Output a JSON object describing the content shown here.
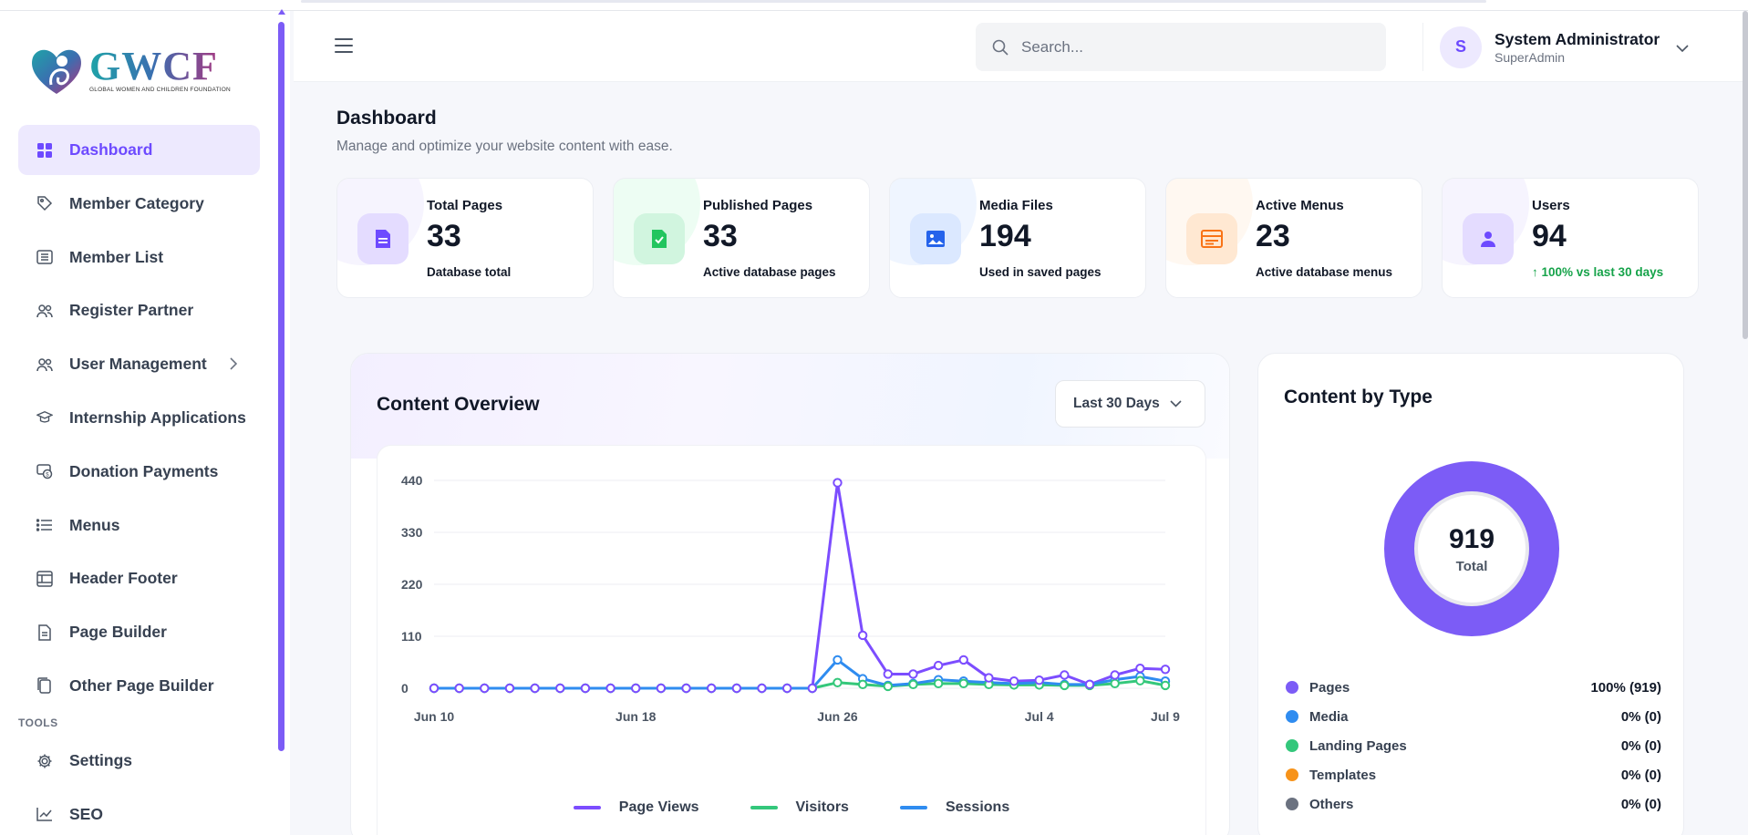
{
  "brand": {
    "name": "GWCF",
    "tagline": "GLOBAL WOMEN AND CHILDREN FOUNDATION"
  },
  "sidebar": {
    "items": [
      {
        "label": "Dashboard",
        "icon": "grid-icon",
        "active": true
      },
      {
        "label": "Member Category",
        "icon": "tag-icon"
      },
      {
        "label": "Member List",
        "icon": "list-card-icon"
      },
      {
        "label": "Register Partner",
        "icon": "users-icon"
      },
      {
        "label": "User Management",
        "icon": "users-icon",
        "has_children": true
      },
      {
        "label": "Internship Applications",
        "icon": "graduation-cap-icon"
      },
      {
        "label": "Donation Payments",
        "icon": "payment-icon"
      },
      {
        "label": "Menus",
        "icon": "menu-list-icon"
      },
      {
        "label": "Header Footer",
        "icon": "layout-icon"
      },
      {
        "label": "Page Builder",
        "icon": "file-icon"
      },
      {
        "label": "Other Page Builder",
        "icon": "copy-icon"
      }
    ],
    "tools_label": "TOOLS",
    "tools_items": [
      {
        "label": "Settings",
        "icon": "gear-icon"
      },
      {
        "label": "SEO",
        "icon": "trend-icon"
      }
    ]
  },
  "header": {
    "search_placeholder": "Search...",
    "user": {
      "initial": "S",
      "name": "System Administrator",
      "role": "SuperAdmin"
    }
  },
  "page": {
    "title": "Dashboard",
    "subtitle": "Manage and optimize your website content with ease."
  },
  "stats": [
    {
      "label": "Total Pages",
      "value": "33",
      "note": "Database total",
      "icon": "document-icon",
      "color": "#6d4aff",
      "tint": "#ede9fe"
    },
    {
      "label": "Published Pages",
      "value": "33",
      "note": "Active database pages",
      "icon": "file-check-icon",
      "color": "#22c55e",
      "tint": "#dcfce7"
    },
    {
      "label": "Media Files",
      "value": "194",
      "note": "Used in saved pages",
      "icon": "image-icon",
      "color": "#2563eb",
      "tint": "#dbeafe"
    },
    {
      "label": "Active Menus",
      "value": "23",
      "note": "Active database menus",
      "icon": "menu-card-icon",
      "color": "#f97316",
      "tint": "#ffedd5"
    },
    {
      "label": "Users",
      "value": "94",
      "note": "↑ 100% vs last 30 days",
      "icon": "user-icon",
      "color": "#6d4aff",
      "tint": "#ede9fe",
      "note_positive": true
    }
  ],
  "overview": {
    "title": "Content Overview",
    "range_label": "Last 30 Days"
  },
  "chart_data": {
    "type": "line",
    "x": [
      "Jun 10",
      "Jun 11",
      "Jun 12",
      "Jun 13",
      "Jun 14",
      "Jun 15",
      "Jun 16",
      "Jun 17",
      "Jun 18",
      "Jun 19",
      "Jun 20",
      "Jun 21",
      "Jun 22",
      "Jun 23",
      "Jun 24",
      "Jun 25",
      "Jun 26",
      "Jun 27",
      "Jun 28",
      "Jun 29",
      "Jun 30",
      "Jul 1",
      "Jul 2",
      "Jul 3",
      "Jul 4",
      "Jul 5",
      "Jul 6",
      "Jul 7",
      "Jul 8",
      "Jul 9"
    ],
    "x_ticks": [
      "Jun 10",
      "Jun 18",
      "Jun 26",
      "Jul 4",
      "Jul 9"
    ],
    "y_ticks": [
      0,
      110,
      220,
      330,
      440
    ],
    "ylim": [
      0,
      440
    ],
    "grid": true,
    "legend_position": "bottom",
    "series": [
      {
        "name": "Page Views",
        "color": "#7c4dff",
        "values": [
          0,
          0,
          0,
          0,
          0,
          0,
          0,
          0,
          0,
          0,
          0,
          0,
          0,
          0,
          0,
          0,
          435,
          112,
          30,
          30,
          48,
          60,
          22,
          15,
          17,
          28,
          8,
          28,
          42,
          40
        ]
      },
      {
        "name": "Visitors",
        "color": "#34c77b",
        "values": [
          0,
          0,
          0,
          0,
          0,
          0,
          0,
          0,
          0,
          0,
          0,
          0,
          0,
          0,
          0,
          0,
          12,
          8,
          4,
          8,
          10,
          10,
          8,
          7,
          7,
          6,
          6,
          10,
          16,
          6
        ]
      },
      {
        "name": "Sessions",
        "color": "#2f8cf0",
        "values": [
          0,
          0,
          0,
          0,
          0,
          0,
          0,
          0,
          0,
          0,
          0,
          0,
          0,
          0,
          0,
          0,
          60,
          20,
          6,
          10,
          18,
          15,
          12,
          10,
          12,
          8,
          8,
          18,
          25,
          15
        ]
      }
    ]
  },
  "bytype": {
    "title": "Content by Type",
    "total": "919",
    "total_label": "Total",
    "items": [
      {
        "name": "Pages",
        "value": "100% (919)",
        "color": "#7c5cf6",
        "share": 1.0
      },
      {
        "name": "Media",
        "value": "0% (0)",
        "color": "#2f8cf0",
        "share": 0
      },
      {
        "name": "Landing Pages",
        "value": "0% (0)",
        "color": "#34c77b",
        "share": 0
      },
      {
        "name": "Templates",
        "value": "0% (0)",
        "color": "#f7931a",
        "share": 0
      },
      {
        "name": "Others",
        "value": "0% (0)",
        "color": "#6b7280",
        "share": 0
      }
    ]
  }
}
